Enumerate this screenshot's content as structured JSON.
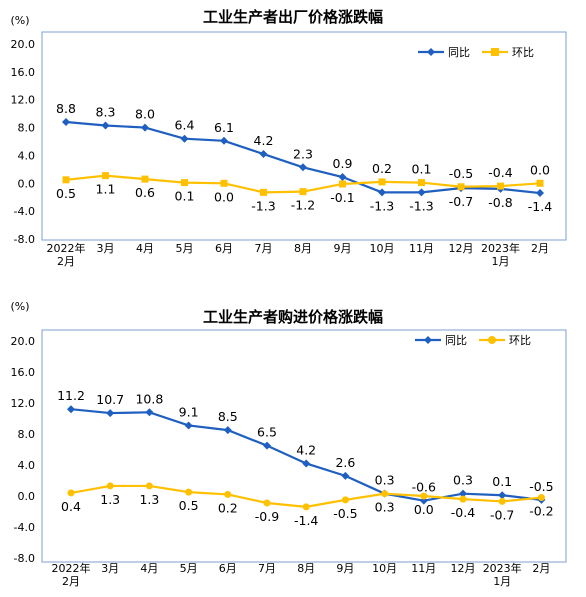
{
  "colors": {
    "yoy": "#1f5fbf",
    "mom": "#ffc000",
    "frame": "#7f9fcf",
    "grid": "#d9d9d9"
  },
  "chart_data": [
    {
      "type": "line",
      "title": "工业生产者出厂价格涨跌幅",
      "ylabel": "(%)",
      "ylim": [
        -8.0,
        20.0
      ],
      "yticks": [
        "20.0",
        "16.0",
        "12.0",
        "8.0",
        "4.0",
        "0.0",
        "-4.0",
        "-8.0"
      ],
      "categories": [
        [
          "2022年",
          "2月"
        ],
        [
          "3月"
        ],
        [
          "4月"
        ],
        [
          "5月"
        ],
        [
          "6月"
        ],
        [
          "7月"
        ],
        [
          "8月"
        ],
        [
          "9月"
        ],
        [
          "10月"
        ],
        [
          "11月"
        ],
        [
          "12月"
        ],
        [
          "2023年",
          "1月"
        ],
        [
          "2月"
        ]
      ],
      "legend_position": "top-right",
      "series": [
        {
          "name": "同比",
          "color": "#1f5fbf",
          "marker": "diamond",
          "values": [
            8.8,
            8.3,
            8.0,
            6.4,
            6.1,
            4.2,
            2.3,
            0.9,
            -1.3,
            -1.3,
            -0.7,
            -0.8,
            -1.4
          ],
          "labels": [
            "8.8",
            "8.3",
            "8.0",
            "6.4",
            "6.1",
            "4.2",
            "2.3",
            "0.9",
            "-1.3",
            "-1.3",
            "-0.7",
            "-0.8",
            "-1.4"
          ]
        },
        {
          "name": "环比",
          "color": "#ffc000",
          "marker": "square",
          "values": [
            0.5,
            1.1,
            0.6,
            0.1,
            0.0,
            -1.3,
            -1.2,
            -0.1,
            0.2,
            0.1,
            -0.5,
            -0.4,
            0.0
          ],
          "labels": [
            "0.5",
            "1.1",
            "0.6",
            "0.1",
            "0.0",
            "-1.3",
            "-1.2",
            "-0.1",
            "0.2",
            "0.1",
            "-0.5",
            "-0.4",
            "0.0"
          ]
        }
      ]
    },
    {
      "type": "line",
      "title": "工业生产者购进价格涨跌幅",
      "ylabel": "(%)",
      "ylim": [
        -8.0,
        20.0
      ],
      "yticks": [
        "20.0",
        "16.0",
        "12.0",
        "8.0",
        "4.0",
        "0.0",
        "-4.0",
        "-8.0"
      ],
      "categories": [
        [
          "2022年",
          "2月"
        ],
        [
          "3月"
        ],
        [
          "4月"
        ],
        [
          "5月"
        ],
        [
          "6月"
        ],
        [
          "7月"
        ],
        [
          "8月"
        ],
        [
          "9月"
        ],
        [
          "10月"
        ],
        [
          "11月"
        ],
        [
          "12月"
        ],
        [
          "2023年",
          "1月"
        ],
        [
          "2月"
        ]
      ],
      "legend_position": "top-right",
      "series": [
        {
          "name": "同比",
          "color": "#1f5fbf",
          "marker": "diamond",
          "values": [
            11.2,
            10.7,
            10.8,
            9.1,
            8.5,
            6.5,
            4.2,
            2.6,
            0.3,
            -0.6,
            0.3,
            0.1,
            -0.5
          ],
          "labels": [
            "11.2",
            "10.7",
            "10.8",
            "9.1",
            "8.5",
            "6.5",
            "4.2",
            "2.6",
            "0.3",
            "-0.6",
            "0.3",
            "0.1",
            "-0.5"
          ]
        },
        {
          "name": "环比",
          "color": "#ffc000",
          "marker": "circle",
          "values": [
            0.4,
            1.3,
            1.3,
            0.5,
            0.2,
            -0.9,
            -1.4,
            -0.5,
            0.3,
            0.0,
            -0.4,
            -0.7,
            -0.2
          ],
          "labels": [
            "0.4",
            "1.3",
            "1.3",
            "0.5",
            "0.2",
            "-0.9",
            "-1.4",
            "-0.5",
            "0.3",
            "0.0",
            "-0.4",
            "-0.7",
            "-0.2"
          ]
        }
      ]
    }
  ]
}
